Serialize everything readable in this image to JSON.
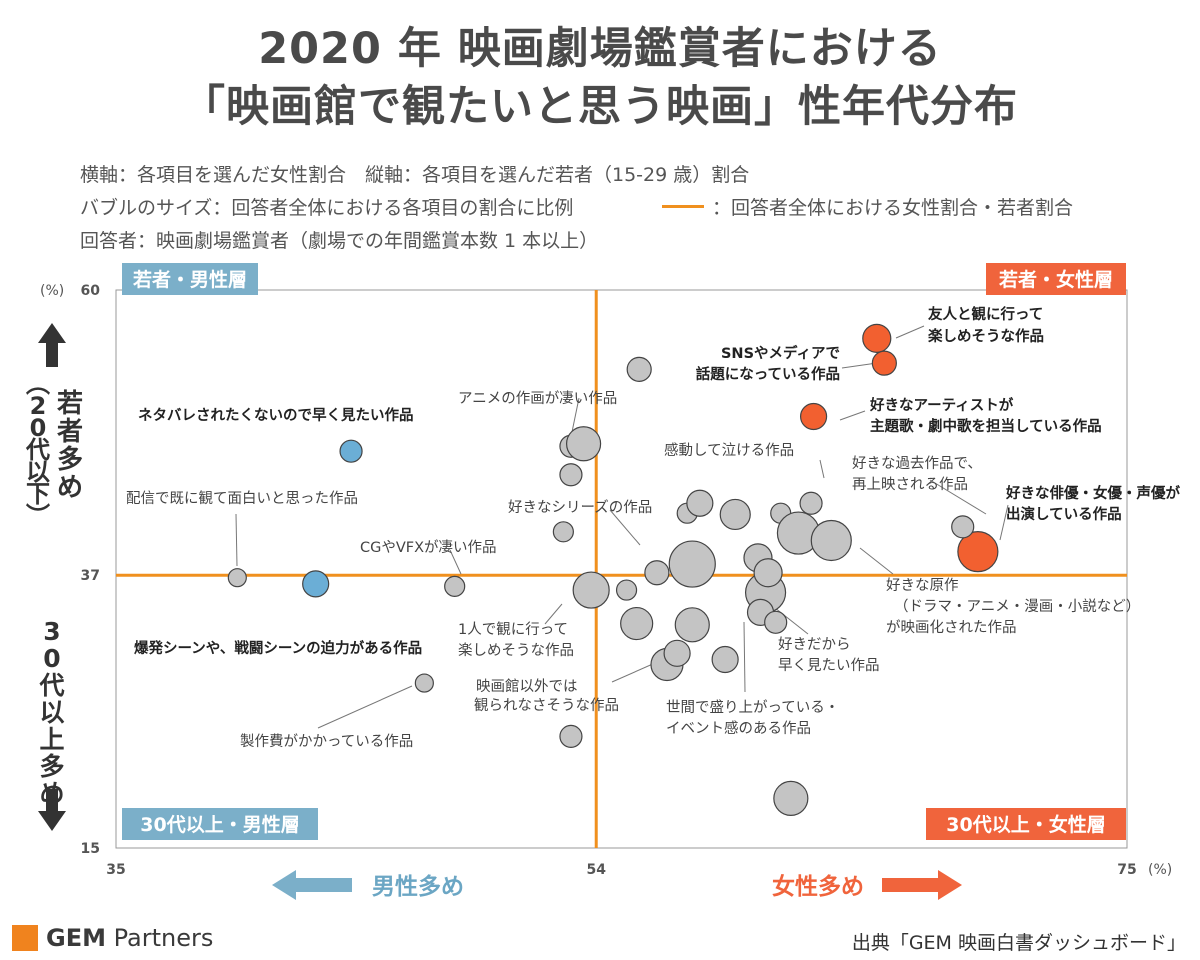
{
  "title": {
    "line1": "2020 年 映画劇場鑑賞者における",
    "line2": "「映画館で観たいと思う映画」性年代分布"
  },
  "notes": {
    "line1": "横軸：各項目を選んだ女性割合　縦軸：各項目を選んだ若者（15-29 歳）割合",
    "line2": "バブルのサイズ：回答者全体における各項目の割合に比例",
    "line2b": "：回答者全体における女性割合・若者割合",
    "line3": "回答者：映画劇場鑑賞者（劇場での年間鑑賞本数 1 本以上）"
  },
  "footer": {
    "logo_bold": "GEM",
    "logo_rest": " Partners",
    "source": "出典「GEM 映画白書ダッシュボード」"
  },
  "colors": {
    "orange_line": "#f0901e",
    "blue": "#6baed6",
    "red": "#f26030",
    "gray": "#c4c4c4",
    "quad_blue": "#7bafc9",
    "quad_red": "#f0643c"
  },
  "chart_data": {
    "type": "scatter",
    "subtype": "bubble",
    "xlim": [
      35,
      75
    ],
    "ylim": [
      15,
      60
    ],
    "xticks": [
      "35",
      "54",
      "75"
    ],
    "yticks": [
      "60",
      "37",
      "15"
    ],
    "x_unit": "(%)",
    "y_unit": "(%)",
    "reference_lines": {
      "x": 54,
      "y": 37
    },
    "quadrants": {
      "top_left": "若者・男性層",
      "top_right": "若者・女性層",
      "bottom_left": "30代以上・男性層",
      "bottom_right": "30代以上・女性層"
    },
    "y_axis_labels": {
      "top": "若者多め（20代以下）",
      "bottom": "30代以上多め"
    },
    "x_axis_labels": {
      "left": "男性多め",
      "right": "女性多め"
    },
    "points": [
      {
        "x": 65.1,
        "y": 56.1,
        "r": 14,
        "color": "red"
      },
      {
        "x": 65.4,
        "y": 54.1,
        "r": 12,
        "color": "red"
      },
      {
        "x": 62.6,
        "y": 49.8,
        "r": 13,
        "color": "red"
      },
      {
        "x": 69.1,
        "y": 38.9,
        "r": 20,
        "color": "red"
      },
      {
        "x": 44.3,
        "y": 47.0,
        "r": 11,
        "color": "blue"
      },
      {
        "x": 42.9,
        "y": 36.3,
        "r": 13,
        "color": "blue"
      },
      {
        "x": 39.8,
        "y": 36.8,
        "r": 9,
        "color": "gray"
      },
      {
        "x": 48.4,
        "y": 36.1,
        "r": 10,
        "color": "gray"
      },
      {
        "x": 47.2,
        "y": 28.3,
        "r": 9,
        "color": "gray"
      },
      {
        "x": 52.7,
        "y": 40.5,
        "r": 10,
        "color": "gray"
      },
      {
        "x": 53.0,
        "y": 45.1,
        "r": 11,
        "color": "gray"
      },
      {
        "x": 53.0,
        "y": 47.4,
        "r": 11,
        "color": "gray"
      },
      {
        "x": 53.5,
        "y": 47.6,
        "r": 17,
        "color": "gray"
      },
      {
        "x": 55.7,
        "y": 53.6,
        "r": 12,
        "color": "gray"
      },
      {
        "x": 53.8,
        "y": 35.8,
        "r": 18,
        "color": "gray"
      },
      {
        "x": 53.0,
        "y": 24.0,
        "r": 11,
        "color": "gray"
      },
      {
        "x": 55.2,
        "y": 35.8,
        "r": 10,
        "color": "gray"
      },
      {
        "x": 55.6,
        "y": 33.1,
        "r": 16,
        "color": "gray"
      },
      {
        "x": 56.4,
        "y": 37.2,
        "r": 12,
        "color": "gray"
      },
      {
        "x": 57.8,
        "y": 37.9,
        "r": 23,
        "color": "gray"
      },
      {
        "x": 57.8,
        "y": 33.0,
        "r": 17,
        "color": "gray"
      },
      {
        "x": 56.8,
        "y": 29.8,
        "r": 16,
        "color": "gray"
      },
      {
        "x": 57.2,
        "y": 30.7,
        "r": 13,
        "color": "gray"
      },
      {
        "x": 57.6,
        "y": 42.0,
        "r": 10,
        "color": "gray"
      },
      {
        "x": 58.1,
        "y": 42.8,
        "r": 13,
        "color": "gray"
      },
      {
        "x": 59.1,
        "y": 30.2,
        "r": 13,
        "color": "gray"
      },
      {
        "x": 59.5,
        "y": 41.9,
        "r": 15,
        "color": "gray"
      },
      {
        "x": 60.4,
        "y": 38.4,
        "r": 14,
        "color": "gray"
      },
      {
        "x": 60.7,
        "y": 35.6,
        "r": 20,
        "color": "gray"
      },
      {
        "x": 60.5,
        "y": 34.0,
        "r": 13,
        "color": "gray"
      },
      {
        "x": 60.8,
        "y": 37.2,
        "r": 14,
        "color": "gray"
      },
      {
        "x": 61.1,
        "y": 33.2,
        "r": 11,
        "color": "gray"
      },
      {
        "x": 61.3,
        "y": 42.0,
        "r": 10,
        "color": "gray"
      },
      {
        "x": 62.5,
        "y": 42.8,
        "r": 11,
        "color": "gray"
      },
      {
        "x": 62.0,
        "y": 40.4,
        "r": 21,
        "color": "gray"
      },
      {
        "x": 63.3,
        "y": 39.8,
        "r": 20,
        "color": "gray"
      },
      {
        "x": 61.7,
        "y": 19.0,
        "r": 17,
        "color": "gray"
      },
      {
        "x": 68.5,
        "y": 40.9,
        "r": 11,
        "color": "gray"
      }
    ],
    "annotations": [
      {
        "text": "友人と観に行って",
        "bold": true,
        "line": 1,
        "group": "friends"
      },
      {
        "text": "楽しめそうな作品",
        "bold": true,
        "line": 2,
        "group": "friends"
      },
      {
        "text": "SNSやメディアで",
        "bold": true,
        "line": 1,
        "group": "sns"
      },
      {
        "text": "話題になっている作品",
        "bold": true,
        "line": 2,
        "group": "sns"
      },
      {
        "text": "好きなアーティストが",
        "bold": true,
        "line": 1,
        "group": "artist"
      },
      {
        "text": "主題歌・劇中歌を担当している作品",
        "bold": true,
        "line": 2,
        "group": "artist"
      },
      {
        "text": "好きな俳優・女優・声優が",
        "bold": true,
        "line": 1,
        "group": "actor"
      },
      {
        "text": "出演している作品",
        "bold": true,
        "line": 2,
        "group": "actor"
      },
      {
        "text": "好きな過去作品で、",
        "bold": false,
        "line": 1,
        "group": "rerun"
      },
      {
        "text": "再上映される作品",
        "bold": false,
        "line": 2,
        "group": "rerun"
      },
      {
        "text": "ネタバレされたくないので早く見たい作品",
        "bold": true,
        "line": 1,
        "group": "spoiler"
      },
      {
        "text": "爆発シーンや、戦闘シーンの迫力がある作品",
        "bold": true,
        "line": 1,
        "group": "explosion"
      },
      {
        "text": "アニメの作画が凄い作品",
        "bold": false,
        "line": 1,
        "group": "anime"
      },
      {
        "text": "感動して泣ける作品",
        "bold": false,
        "line": 1,
        "group": "cry"
      },
      {
        "text": "配信で既に観て面白いと思った作品",
        "bold": false,
        "line": 1,
        "group": "stream"
      },
      {
        "text": "好きなシリーズの作品",
        "bold": false,
        "line": 1,
        "group": "series"
      },
      {
        "text": "CGやVFXが凄い作品",
        "bold": false,
        "line": 1,
        "group": "cg"
      },
      {
        "text": "好きな原作",
        "bold": false,
        "line": 1,
        "group": "original"
      },
      {
        "text": "（ドラマ・アニメ・漫画・小説など）",
        "bold": false,
        "line": 2,
        "group": "original"
      },
      {
        "text": "が映画化された作品",
        "bold": false,
        "line": 3,
        "group": "original"
      },
      {
        "text": "1人で観に行って",
        "bold": false,
        "line": 1,
        "group": "alone"
      },
      {
        "text": "楽しめそうな作品",
        "bold": false,
        "line": 2,
        "group": "alone"
      },
      {
        "text": "好きだから",
        "bold": false,
        "line": 1,
        "group": "like"
      },
      {
        "text": "早く見たい作品",
        "bold": false,
        "line": 2,
        "group": "like"
      },
      {
        "text": "映画館以外では",
        "bold": false,
        "line": 1,
        "group": "theater"
      },
      {
        "text": "観られなさそうな作品",
        "bold": false,
        "line": 2,
        "group": "theater"
      },
      {
        "text": "世間で盛り上がっている・",
        "bold": false,
        "line": 1,
        "group": "event"
      },
      {
        "text": "イベント感のある作品",
        "bold": false,
        "line": 2,
        "group": "event"
      },
      {
        "text": "製作費がかかっている作品",
        "bold": false,
        "line": 1,
        "group": "budget"
      }
    ]
  }
}
